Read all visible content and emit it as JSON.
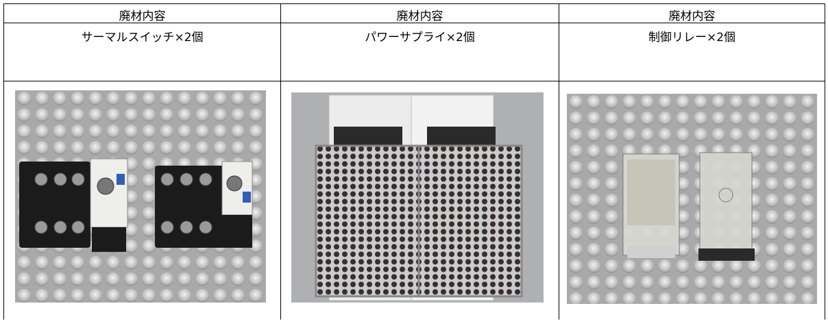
{
  "table": {
    "header": [
      "廃材内容",
      "廃材内容",
      "廃材内容"
    ],
    "items": [
      "サーマルスイッチ×2個",
      "パワーサプライ×2個",
      "制御リレー×2個"
    ]
  }
}
